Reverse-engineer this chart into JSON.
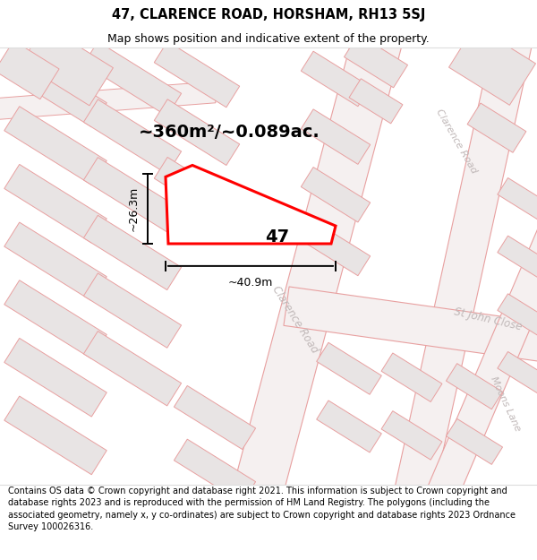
{
  "title": "47, CLARENCE ROAD, HORSHAM, RH13 5SJ",
  "subtitle": "Map shows position and indicative extent of the property.",
  "footer": "Contains OS data © Crown copyright and database right 2021. This information is subject to Crown copyright and database rights 2023 and is reproduced with the permission of HM Land Registry. The polygons (including the associated geometry, namely x, y co-ordinates) are subject to Crown copyright and database rights 2023 Ordnance Survey 100026316.",
  "area_label": "~360m²/~0.089ac.",
  "number_label": "47",
  "dim_width": "~40.9m",
  "dim_height": "~26.3m",
  "road_label_clarence1": "Clarence Road",
  "road_label_clarence2": "Clarence Road",
  "road_label_stjohn": "St John Close",
  "road_label_moons": "Moons Lane",
  "bg_color": "#ffffff",
  "map_bg": "#f7f4f4",
  "block_color": "#e8e4e4",
  "road_line_color": "#e8a0a0",
  "road_surface_color": "#f5f0f0",
  "highlight_color": "#ff0000",
  "highlight_fill": "#ffffff",
  "dim_line_color": "#000000",
  "road_label_color": "#c0b8b8",
  "title_fontsize": 10.5,
  "subtitle_fontsize": 9,
  "footer_fontsize": 7.0,
  "area_fontsize": 14,
  "number_fontsize": 14,
  "dim_fontsize": 9,
  "road_fontsize": 8.5
}
